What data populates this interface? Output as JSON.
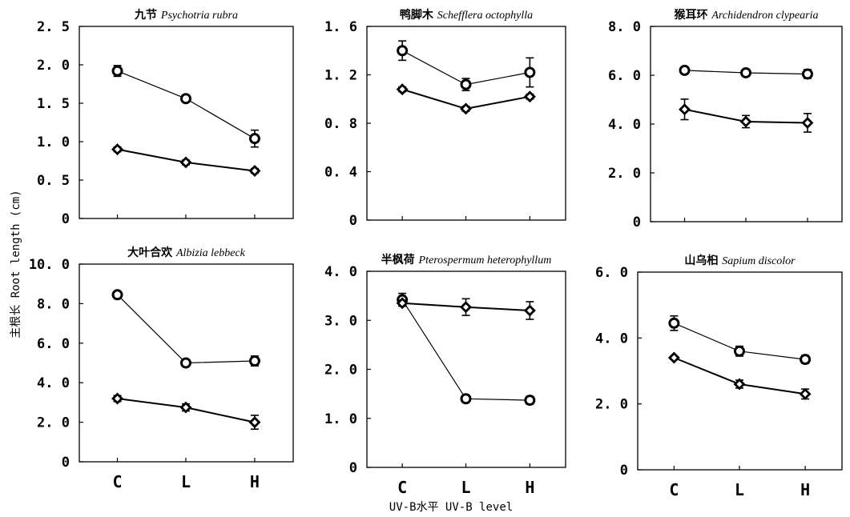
{
  "figure": {
    "ylabel": "主根长 Root length (cm)",
    "xlabel": "UV-B水平 UV-B level"
  },
  "chart_data": [
    {
      "type": "line",
      "title_cn": "九节",
      "title_latin": "Psychotria rubra",
      "categories": [
        "C",
        "L",
        "H"
      ],
      "ylim": [
        0,
        2.5
      ],
      "yticks": [
        "0",
        "0. 5",
        "1. 0",
        "1. 5",
        "2. 0",
        "2. 5"
      ],
      "show_xticks": false,
      "series": [
        {
          "marker": "circle",
          "values": [
            1.92,
            1.56,
            1.04
          ],
          "errors": [
            0.07,
            0.04,
            0.11
          ]
        },
        {
          "marker": "diamond",
          "values": [
            0.9,
            0.73,
            0.62
          ],
          "errors": [
            0.03,
            0.03,
            0.03
          ]
        }
      ]
    },
    {
      "type": "line",
      "title_cn": "鸭脚木",
      "title_latin": "Schefflera octophylla",
      "categories": [
        "C",
        "L",
        "H"
      ],
      "ylim": [
        0,
        1.6
      ],
      "yticks": [
        "0",
        "0. 4",
        "0. 8",
        "1. 2",
        "1. 6"
      ],
      "show_xticks": false,
      "series": [
        {
          "marker": "circle",
          "values": [
            1.4,
            1.12,
            1.22
          ],
          "errors": [
            0.08,
            0.05,
            0.12
          ]
        },
        {
          "marker": "diamond",
          "values": [
            1.08,
            0.92,
            1.02
          ],
          "errors": [
            0.02,
            0.02,
            0.02
          ]
        }
      ]
    },
    {
      "type": "line",
      "title_cn": "猴耳环",
      "title_latin": "Archidendron clypearia",
      "categories": [
        "C",
        "L",
        "H"
      ],
      "ylim": [
        0,
        8
      ],
      "yticks": [
        "0",
        "2. 0",
        "4. 0",
        "6. 0",
        "8. 0"
      ],
      "show_xticks": false,
      "series": [
        {
          "marker": "circle",
          "values": [
            6.2,
            6.1,
            6.05
          ],
          "errors": [
            0.12,
            0.12,
            0.18
          ]
        },
        {
          "marker": "diamond",
          "values": [
            4.6,
            4.1,
            4.05
          ],
          "errors": [
            0.42,
            0.25,
            0.38
          ]
        }
      ]
    },
    {
      "type": "line",
      "title_cn": "大叶合欢",
      "title_latin": "Albizia lebbeck",
      "categories": [
        "C",
        "L",
        "H"
      ],
      "ylim": [
        0,
        10
      ],
      "yticks": [
        "0",
        "2. 0",
        "4. 0",
        "6. 0",
        "8. 0",
        "10. 0"
      ],
      "show_xticks": true,
      "series": [
        {
          "marker": "circle",
          "values": [
            8.45,
            5.0,
            5.1
          ],
          "errors": [
            0.15,
            0.15,
            0.25
          ]
        },
        {
          "marker": "diamond",
          "values": [
            3.2,
            2.75,
            2.0
          ],
          "errors": [
            0.15,
            0.18,
            0.35
          ]
        }
      ]
    },
    {
      "type": "line",
      "title_cn": "半枫荷",
      "title_latin": "Pterospermum heterophyllum",
      "categories": [
        "C",
        "L",
        "H"
      ],
      "ylim": [
        0,
        4
      ],
      "yticks": [
        "0",
        "1. 0",
        "2. 0",
        "3. 0",
        "4. 0"
      ],
      "show_xticks": true,
      "series": [
        {
          "marker": "circle",
          "values": [
            3.42,
            1.4,
            1.37
          ],
          "errors": [
            0.13,
            0.05,
            0.08
          ]
        },
        {
          "marker": "diamond",
          "values": [
            3.35,
            3.27,
            3.2
          ],
          "errors": [
            0.06,
            0.17,
            0.18
          ]
        }
      ]
    },
    {
      "type": "line",
      "title_cn": "山乌桕",
      "title_latin": "Sapium discolor",
      "categories": [
        "C",
        "L",
        "H"
      ],
      "ylim": [
        0,
        6
      ],
      "yticks": [
        "0",
        "2. 0",
        "4. 0",
        "6. 0"
      ],
      "show_xticks": true,
      "series": [
        {
          "marker": "circle",
          "values": [
            4.45,
            3.6,
            3.35
          ],
          "errors": [
            0.22,
            0.15,
            0.12
          ]
        },
        {
          "marker": "diamond",
          "values": [
            3.4,
            2.6,
            2.3
          ],
          "errors": [
            0.05,
            0.12,
            0.15
          ]
        }
      ]
    }
  ]
}
